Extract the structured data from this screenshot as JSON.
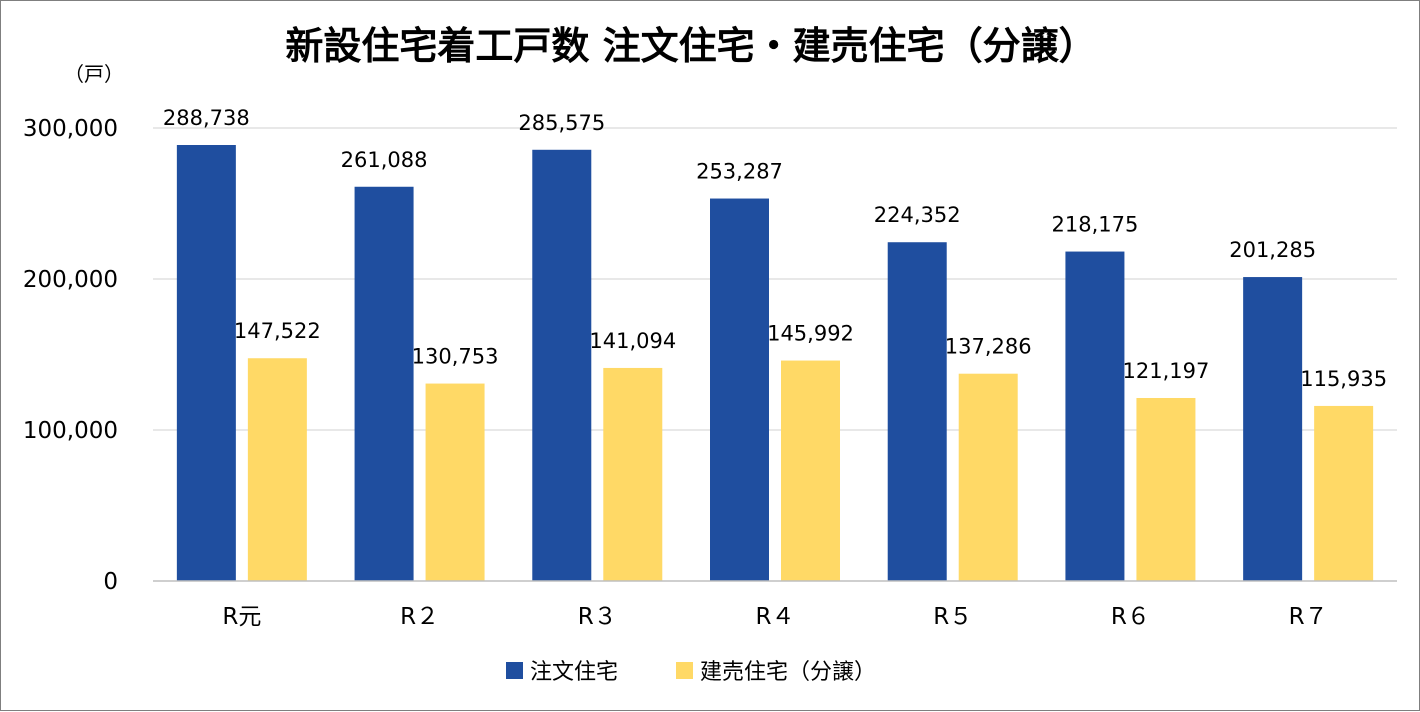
{
  "chart_data": {
    "type": "bar",
    "title": "新設住宅着工戸数 注文住宅・建売住宅（分譲）",
    "unit_label": "（戸）",
    "categories": [
      "R元",
      "R２",
      "R３",
      "R４",
      "R５",
      "R６",
      "R７"
    ],
    "series": [
      {
        "name": "注文住宅",
        "color": "#1f4e9f",
        "values": [
          288738,
          261088,
          285575,
          253287,
          224352,
          218175,
          201285
        ],
        "labels": [
          "288,738",
          "261,088",
          "285,575",
          "253,287",
          "224,352",
          "218,175",
          "201,285"
        ]
      },
      {
        "name": "建売住宅（分譲）",
        "color": "#ffd966",
        "values": [
          147522,
          130753,
          141094,
          145992,
          137286,
          121197,
          115935
        ],
        "labels": [
          "147,522",
          "130,753",
          "141,094",
          "145,992",
          "137,286",
          "121,197",
          "115,935"
        ]
      }
    ],
    "yticks": [
      {
        "value": 0,
        "label": "0"
      },
      {
        "value": 100000,
        "label": "100,000"
      },
      {
        "value": 200000,
        "label": "200,000"
      },
      {
        "value": 300000,
        "label": "300,000"
      }
    ],
    "ylim": [
      0,
      300000
    ],
    "grid": true,
    "legend_position": "bottom-center"
  }
}
